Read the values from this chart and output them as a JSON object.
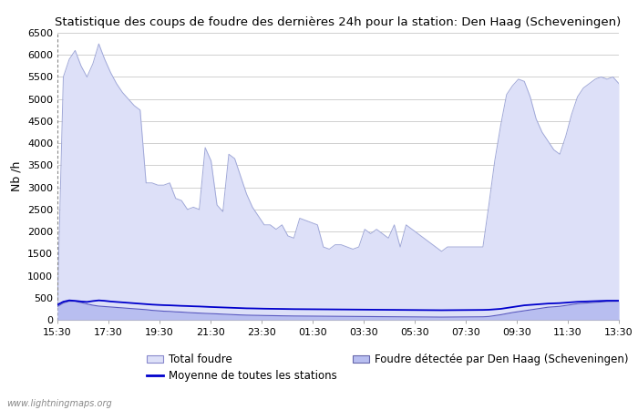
{
  "title": "Statistique des coups de foudre des dernières 24h pour la station: Den Haag (Scheveningen)",
  "ylabel": "Nb /h",
  "ylim": [
    0,
    6500
  ],
  "yticks": [
    0,
    500,
    1000,
    1500,
    2000,
    2500,
    3000,
    3500,
    4000,
    4500,
    5000,
    5500,
    6000,
    6500
  ],
  "xtick_labels": [
    "15:30",
    "17:30",
    "19:30",
    "21:30",
    "23:30",
    "01:30",
    "03:30",
    "05:30",
    "07:30",
    "09:30",
    "11:30",
    "13:30"
  ],
  "background_color": "#ffffff",
  "plot_bg_color": "#ffffff",
  "grid_color": "#d0d0d0",
  "total_foudre_color": "#dde0f8",
  "total_foudre_edge": "#a0a8d8",
  "detected_color": "#b8bef0",
  "detected_edge": "#5858c0",
  "moyenne_color": "#0000cc",
  "watermark": "www.lightningmaps.org",
  "total_foudre_values": [
    320,
    5500,
    5900,
    6100,
    5750,
    5500,
    5800,
    6250,
    5900,
    5600,
    5350,
    5150,
    5000,
    4850,
    4750,
    3100,
    3100,
    3050,
    3050,
    3100,
    2750,
    2700,
    2500,
    2550,
    2500,
    3900,
    3600,
    2600,
    2450,
    3750,
    3650,
    3250,
    2850,
    2550,
    2350,
    2150,
    2150,
    2050,
    2150,
    1900,
    1850,
    2300,
    2250,
    2200,
    2150,
    1650,
    1600,
    1700,
    1700,
    1650,
    1600,
    1650,
    2050,
    1950,
    2050,
    1950,
    1850,
    2150,
    1650,
    2150,
    2050,
    1950,
    1850,
    1750,
    1650,
    1550,
    1650,
    1650,
    1650,
    1650,
    1650,
    1650,
    1650,
    2600,
    3600,
    4400,
    5100,
    5300,
    5450,
    5400,
    5050,
    4550,
    4250,
    4050,
    3850,
    3750,
    4150,
    4650,
    5050,
    5250,
    5350,
    5450,
    5500,
    5450,
    5500,
    5350
  ],
  "detected_values": [
    300,
    380,
    420,
    420,
    390,
    360,
    330,
    310,
    300,
    290,
    280,
    270,
    260,
    250,
    240,
    230,
    215,
    205,
    195,
    190,
    180,
    175,
    165,
    158,
    152,
    145,
    140,
    135,
    128,
    122,
    116,
    110,
    105,
    102,
    100,
    97,
    95,
    93,
    90,
    88,
    86,
    85,
    84,
    83,
    82,
    81,
    80,
    79,
    78,
    77,
    76,
    75,
    74,
    73,
    72,
    71,
    70,
    69,
    68,
    67,
    66,
    65,
    64,
    63,
    62,
    61,
    62,
    63,
    64,
    65,
    66,
    67,
    68,
    75,
    95,
    115,
    140,
    165,
    185,
    205,
    225,
    245,
    265,
    285,
    295,
    305,
    325,
    345,
    365,
    375,
    385,
    395,
    405,
    415,
    418,
    420
  ],
  "moyenne_values": [
    340,
    410,
    440,
    430,
    415,
    405,
    425,
    440,
    430,
    415,
    405,
    395,
    385,
    375,
    365,
    355,
    345,
    338,
    332,
    328,
    322,
    316,
    312,
    306,
    302,
    296,
    290,
    285,
    280,
    275,
    270,
    265,
    260,
    258,
    255,
    252,
    250,
    248,
    246,
    244,
    242,
    241,
    240,
    239,
    238,
    237,
    236,
    235,
    234,
    233,
    232,
    231,
    230,
    229,
    228,
    227,
    226,
    225,
    224,
    223,
    222,
    221,
    220,
    219,
    218,
    217,
    218,
    219,
    220,
    221,
    222,
    223,
    224,
    228,
    238,
    248,
    268,
    288,
    308,
    328,
    338,
    348,
    358,
    368,
    373,
    378,
    388,
    398,
    408,
    413,
    418,
    423,
    428,
    433,
    433,
    433
  ]
}
